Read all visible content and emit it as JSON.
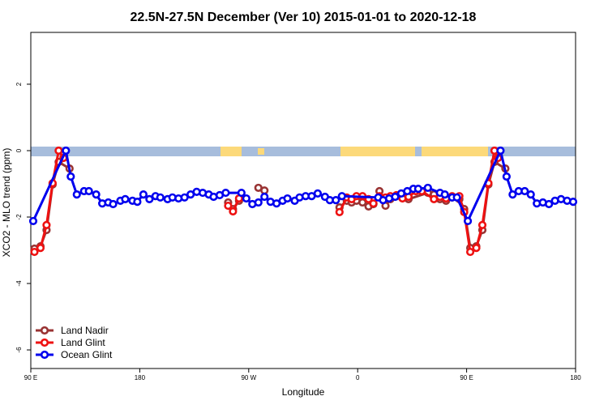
{
  "chart_data": {
    "type": "line",
    "title": "22.5N-27.5N December (Ver 10)   2015-01-01 to 2020-12-18",
    "x_label": "Longitude",
    "y_label": "XCO2 - MLO trend (ppm)",
    "xlim": [
      90,
      540
    ],
    "ylim": [
      -6.56,
      3.56
    ],
    "xticks": [
      {
        "value": 90,
        "label": "90 E"
      },
      180,
      {
        "value": 270,
        "label": "90 W"
      },
      {
        "value": 360,
        "label": "0"
      },
      {
        "value": 450,
        "label": "90 E"
      },
      {
        "value": 540,
        "label": "180"
      }
    ],
    "yticks": [
      -6,
      -4,
      -2,
      0,
      2
    ],
    "legend": "bottom-left",
    "series": [
      {
        "name": "Land Nadir",
        "color": "#993333",
        "x": [
          93,
          98,
          103,
          108,
          113,
          122,
          null,
          253,
          257,
          262,
          null,
          278,
          283,
          null,
          345,
          351,
          355,
          359,
          364,
          369,
          373,
          378,
          383,
          387,
          392,
          397,
          402,
          418,
          423,
          428,
          433,
          438,
          444,
          448,
          453,
          458,
          463,
          468,
          473,
          482
        ],
        "values": [
          -2.95,
          -2.88,
          -2.39,
          -1.02,
          -0.34,
          -0.54,
          null,
          -1.56,
          -1.76,
          -1.51,
          null,
          -1.12,
          -1.2,
          null,
          -1.71,
          -1.51,
          -1.56,
          -1.51,
          -1.56,
          -1.68,
          -1.61,
          -1.22,
          -1.66,
          -1.46,
          -1.37,
          -1.41,
          -1.46,
          -1.27,
          -1.32,
          -1.46,
          -1.51,
          -1.41,
          -1.46,
          -1.76,
          -2.93,
          -2.88,
          -2.39,
          -1.02,
          -0.34,
          -0.54
        ]
      },
      {
        "name": "Land Glint",
        "color": "#ee1111",
        "x": [
          93,
          98,
          103,
          108,
          113,
          117,
          null,
          253,
          257,
          262,
          null,
          345,
          351,
          355,
          359,
          364,
          369,
          373,
          378,
          383,
          387,
          392,
          397,
          402,
          408,
          413,
          423,
          428,
          433,
          438,
          444,
          448,
          453,
          458,
          463,
          468,
          473,
          476
        ],
        "values": [
          -3.05,
          -2.93,
          -2.24,
          -0.98,
          0,
          -0.22,
          null,
          -1.66,
          -1.83,
          -1.44,
          null,
          -1.85,
          -1.41,
          -1.46,
          -1.37,
          -1.37,
          -1.46,
          -1.59,
          -1.37,
          -1.41,
          -1.37,
          -1.34,
          -1.44,
          -1.39,
          -1.22,
          -1.22,
          -1.46,
          -1.39,
          -1.44,
          -1.37,
          -1.37,
          -1.85,
          -3.05,
          -2.93,
          -2.24,
          -0.98,
          0,
          -0.22
        ]
      },
      {
        "name": "Ocean Glint",
        "color": "#0000ee",
        "x": [
          92,
          119,
          123,
          128,
          134,
          138,
          144,
          149,
          154,
          158,
          164,
          168,
          174,
          178,
          183,
          188,
          193,
          197,
          203,
          207,
          212,
          217,
          222,
          227,
          232,
          237,
          241,
          246,
          251,
          264,
          268,
          273,
          278,
          283,
          288,
          293,
          298,
          302,
          308,
          312,
          317,
          322,
          327,
          333,
          337,
          342,
          347,
          377,
          381,
          386,
          391,
          396,
          401,
          406,
          410,
          418,
          428,
          432,
          438,
          442,
          451,
          478,
          483,
          488,
          493,
          498,
          503,
          508,
          513,
          518,
          523,
          528,
          533,
          538
        ],
        "values": [
          -2.12,
          0,
          -0.78,
          -1.32,
          -1.22,
          -1.22,
          -1.32,
          -1.59,
          -1.56,
          -1.61,
          -1.51,
          -1.46,
          -1.51,
          -1.54,
          -1.32,
          -1.46,
          -1.37,
          -1.41,
          -1.46,
          -1.41,
          -1.44,
          -1.41,
          -1.32,
          -1.24,
          -1.27,
          -1.32,
          -1.39,
          -1.34,
          -1.27,
          -1.27,
          -1.44,
          -1.61,
          -1.56,
          -1.39,
          -1.54,
          -1.59,
          -1.51,
          -1.44,
          -1.51,
          -1.41,
          -1.37,
          -1.37,
          -1.29,
          -1.39,
          -1.49,
          -1.49,
          -1.37,
          -1.41,
          -1.49,
          -1.44,
          -1.39,
          -1.29,
          -1.22,
          -1.15,
          -1.15,
          -1.12,
          -1.27,
          -1.32,
          -1.41,
          -1.41,
          -2.12,
          0,
          -0.78,
          -1.32,
          -1.22,
          -1.22,
          -1.32,
          -1.59,
          -1.56,
          -1.61,
          -1.51,
          -1.46,
          -1.51,
          -1.54
        ]
      }
    ]
  }
}
